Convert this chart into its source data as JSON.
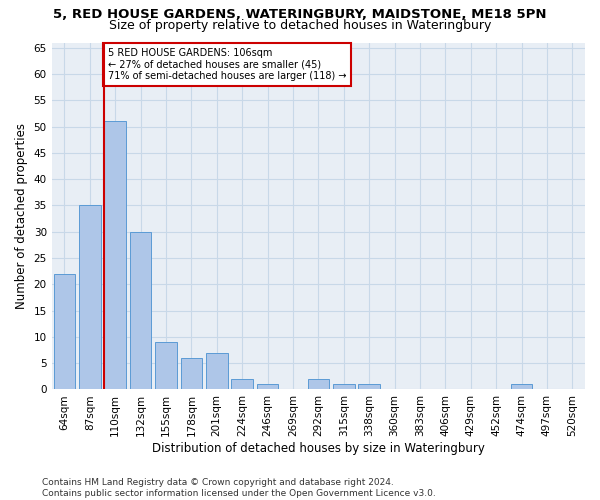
{
  "title": "5, RED HOUSE GARDENS, WATERINGBURY, MAIDSTONE, ME18 5PN",
  "subtitle": "Size of property relative to detached houses in Wateringbury",
  "xlabel": "Distribution of detached houses by size in Wateringbury",
  "ylabel": "Number of detached properties",
  "categories": [
    "64sqm",
    "87sqm",
    "110sqm",
    "132sqm",
    "155sqm",
    "178sqm",
    "201sqm",
    "224sqm",
    "246sqm",
    "269sqm",
    "292sqm",
    "315sqm",
    "338sqm",
    "360sqm",
    "383sqm",
    "406sqm",
    "429sqm",
    "452sqm",
    "474sqm",
    "497sqm",
    "520sqm"
  ],
  "values": [
    22,
    35,
    51,
    30,
    9,
    6,
    7,
    2,
    1,
    0,
    2,
    1,
    1,
    0,
    0,
    0,
    0,
    0,
    1,
    0,
    0
  ],
  "bar_color": "#aec6e8",
  "bar_edge_color": "#5b9bd5",
  "vline_x_index": 2,
  "vline_color": "#cc0000",
  "annotation_lines": [
    "5 RED HOUSE GARDENS: 106sqm",
    "← 27% of detached houses are smaller (45)",
    "71% of semi-detached houses are larger (118) →"
  ],
  "annotation_box_color": "#cc0000",
  "ylim": [
    0,
    66
  ],
  "yticks": [
    0,
    5,
    10,
    15,
    20,
    25,
    30,
    35,
    40,
    45,
    50,
    55,
    60,
    65
  ],
  "grid_color": "#c8d8e8",
  "bg_color": "#e8eef5",
  "footer": "Contains HM Land Registry data © Crown copyright and database right 2024.\nContains public sector information licensed under the Open Government Licence v3.0.",
  "title_fontsize": 9.5,
  "subtitle_fontsize": 9,
  "xlabel_fontsize": 8.5,
  "ylabel_fontsize": 8.5,
  "tick_fontsize": 7.5,
  "footer_fontsize": 6.5
}
